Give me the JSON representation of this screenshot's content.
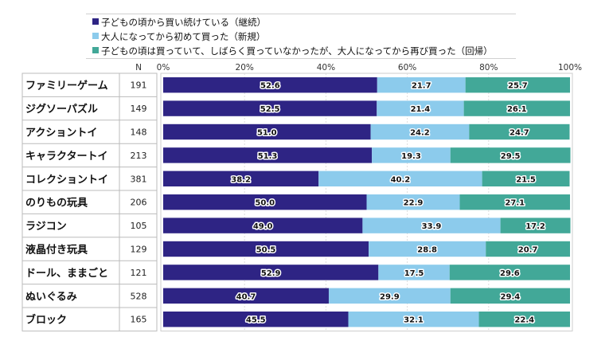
{
  "chart_data": {
    "type": "bar",
    "orientation": "horizontal",
    "stacked": "percent",
    "title": "",
    "xlabel": "",
    "ylabel": "",
    "n_header": "N",
    "xlim": [
      0,
      100
    ],
    "xticks": [
      "0%",
      "20%",
      "40%",
      "60%",
      "80%",
      "100%"
    ],
    "grid": true,
    "legend_position": "top",
    "categories": [
      "ファミリーゲーム",
      "ジグソーパズル",
      "アクショントイ",
      "キャラクタートイ",
      "コレクショントイ",
      "のりもの玩具",
      "ラジコン",
      "液晶付き玩具",
      "ドール、ままごと",
      "ぬいぐるみ",
      "ブロック"
    ],
    "n": [
      191,
      149,
      148,
      213,
      381,
      206,
      105,
      129,
      121,
      528,
      165
    ],
    "series": [
      {
        "name": "子どもの頃から買い続けている（継続）",
        "color": "#2e2484",
        "values": [
          52.6,
          52.5,
          51.0,
          51.3,
          38.2,
          50.0,
          49.0,
          50.5,
          52.9,
          40.7,
          45.5
        ]
      },
      {
        "name": "大人になってから初めて買った（新規）",
        "color": "#8ccbec",
        "values": [
          21.7,
          21.4,
          24.2,
          19.3,
          40.2,
          22.9,
          33.9,
          28.8,
          17.5,
          29.9,
          32.1
        ]
      },
      {
        "name": "子どもの頃は買っていて、しばらく買っていなかったが、大人になってから再び買った（回帰）",
        "color": "#42a898",
        "values": [
          25.7,
          26.1,
          24.7,
          29.5,
          21.5,
          27.1,
          17.2,
          20.7,
          29.6,
          29.4,
          22.4
        ]
      }
    ]
  }
}
